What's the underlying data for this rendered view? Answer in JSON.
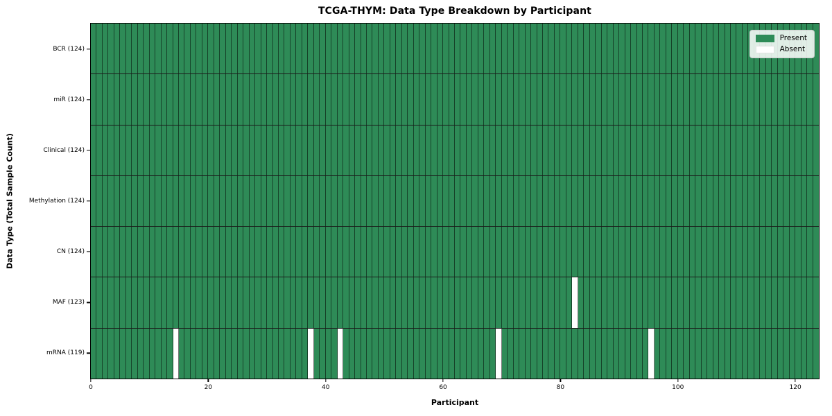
{
  "title": "TCGA-THYM: Data Type Breakdown by Participant",
  "xlabel": "Participant",
  "ylabel": "Data Type (Total Sample Count)",
  "legend": {
    "present_label": "Present",
    "absent_label": "Absent"
  },
  "colors": {
    "present": "#2e8b57",
    "absent": "#ffffff",
    "cell_edge": "rgba(0,0,0,0.52)",
    "row_separator": "#1a1a1a",
    "plot_border": "#000000",
    "legend_border": "#cccccc",
    "legend_background": "rgba(255,255,255,0.85)"
  },
  "chart_data": {
    "type": "heatmap",
    "n_participants": 124,
    "x_axis_range": [
      0,
      124
    ],
    "x_ticks": [
      0,
      20,
      40,
      60,
      80,
      100,
      120
    ],
    "legend_position": "upper right",
    "grid": "per-cell vertical edges plus black row separators",
    "rows": [
      {
        "label": "BCR (124)",
        "data_type": "BCR",
        "present_count": 124,
        "absent_participants": []
      },
      {
        "label": "miR (124)",
        "data_type": "miR",
        "present_count": 124,
        "absent_participants": []
      },
      {
        "label": "Clinical (124)",
        "data_type": "Clinical",
        "present_count": 124,
        "absent_participants": []
      },
      {
        "label": "Methylation (124)",
        "data_type": "Methylation",
        "present_count": 124,
        "absent_participants": []
      },
      {
        "label": "CN (124)",
        "data_type": "CN",
        "present_count": 124,
        "absent_participants": []
      },
      {
        "label": "MAF (123)",
        "data_type": "MAF",
        "present_count": 123,
        "absent_participants": [
          82
        ]
      },
      {
        "label": "mRNA (119)",
        "data_type": "mRNA",
        "present_count": 119,
        "absent_participants": [
          14,
          37,
          42,
          69,
          95
        ]
      }
    ]
  }
}
